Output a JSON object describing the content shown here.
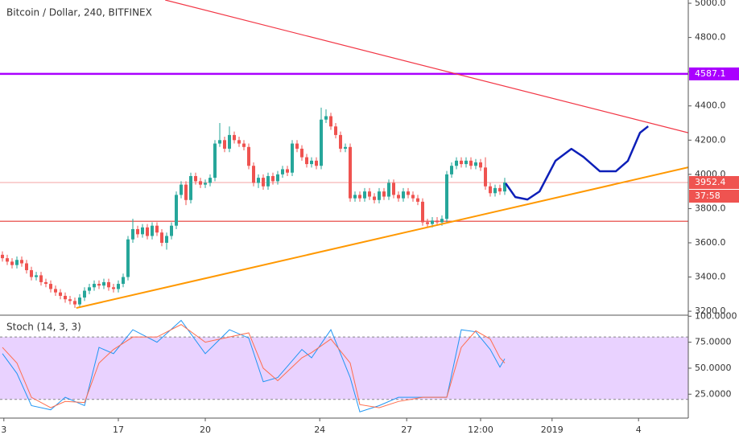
{
  "chart_data": {
    "type": "candlestick",
    "title": "Bitcoin / Dollar, 240, BITFINEX",
    "xlim": [
      -0.5,
      142
    ],
    "ylim": [
      3177,
      5019
    ],
    "xticks": [
      {
        "value": 0.3,
        "label": "3"
      },
      {
        "value": 24,
        "label": "17"
      },
      {
        "value": 42,
        "label": "20"
      },
      {
        "value": 65.7,
        "label": "24"
      },
      {
        "value": 83.7,
        "label": "27"
      },
      {
        "value": 99,
        "label": "12:00"
      },
      {
        "value": 113.8,
        "label": "2019"
      },
      {
        "value": 131.7,
        "label": "4"
      }
    ],
    "yticks": [
      {
        "value": 3200,
        "label": "3200.0"
      },
      {
        "value": 3400,
        "label": "3400.0"
      },
      {
        "value": 3600,
        "label": "3600.0"
      },
      {
        "value": 3800,
        "label": "3800.0"
      },
      {
        "value": 4000,
        "label": "4000.0"
      },
      {
        "value": 4200,
        "label": "4200.0"
      },
      {
        "value": 4400,
        "label": "4400.0"
      },
      {
        "value": 4600,
        "label": "4600.0"
      },
      {
        "value": 4800,
        "label": "4800.0"
      },
      {
        "value": 5000,
        "label": "5000.0"
      }
    ],
    "up_color": "#26a69a",
    "down_color": "#ef5350",
    "candles": {
      "open": [
        3530,
        3510,
        3490,
        3470,
        3500,
        3480,
        3440,
        3400,
        3410,
        3370,
        3360,
        3330,
        3310,
        3290,
        3270,
        3260,
        3240,
        3280,
        3320,
        3340,
        3360,
        3350,
        3370,
        3340,
        3330,
        3360,
        3400,
        3620,
        3680,
        3650,
        3690,
        3640,
        3700,
        3660,
        3600,
        3640,
        3700,
        3880,
        3940,
        3850,
        3990,
        3960,
        3940,
        3950,
        3980,
        4180,
        4200,
        4150,
        4230,
        4200,
        4180,
        4160,
        4050,
        3950,
        3980,
        3930,
        3990,
        3960,
        4000,
        4030,
        4010,
        4180,
        4150,
        4100,
        4060,
        4080,
        4050,
        4320,
        4340,
        4280,
        4230,
        4150,
        4160,
        3860,
        3880,
        3860,
        3900,
        3870,
        3850,
        3900,
        3870,
        3950,
        3880,
        3860,
        3900,
        3880,
        3860,
        3840,
        3720,
        3710,
        3730,
        3720,
        3740,
        4000,
        4050,
        4080,
        4060,
        4080,
        4050,
        4070,
        4040,
        3930,
        3890,
        3920,
        3900
      ],
      "high": [
        3550,
        3530,
        3510,
        3520,
        3520,
        3500,
        3460,
        3430,
        3430,
        3390,
        3380,
        3350,
        3330,
        3310,
        3290,
        3280,
        3300,
        3340,
        3360,
        3380,
        3380,
        3390,
        3390,
        3360,
        3380,
        3420,
        3640,
        3740,
        3700,
        3710,
        3710,
        3720,
        3720,
        3680,
        3660,
        3720,
        3900,
        3960,
        3960,
        4010,
        4010,
        3980,
        3970,
        4000,
        4200,
        4300,
        4220,
        4280,
        4250,
        4220,
        4200,
        4180,
        4070,
        4000,
        4000,
        4010,
        4010,
        4020,
        4050,
        4050,
        4200,
        4200,
        4170,
        4120,
        4100,
        4100,
        4390,
        4380,
        4360,
        4300,
        4250,
        4180,
        4180,
        3900,
        3900,
        3920,
        3920,
        3890,
        3920,
        3920,
        3970,
        3970,
        3900,
        3920,
        3920,
        3900,
        3880,
        3860,
        3740,
        3750,
        3750,
        3760,
        4020,
        4070,
        4100,
        4100,
        4100,
        4100,
        4090,
        4090,
        4100,
        3950,
        3940,
        3940,
        3980
      ],
      "low": [
        3490,
        3470,
        3450,
        3450,
        3460,
        3420,
        3380,
        3380,
        3350,
        3340,
        3310,
        3290,
        3270,
        3250,
        3240,
        3220,
        3220,
        3260,
        3300,
        3320,
        3330,
        3330,
        3320,
        3310,
        3310,
        3340,
        3380,
        3600,
        3630,
        3630,
        3620,
        3620,
        3640,
        3580,
        3560,
        3620,
        3680,
        3860,
        3820,
        3830,
        3940,
        3920,
        3920,
        3930,
        3960,
        4160,
        4130,
        4130,
        4180,
        4160,
        4140,
        4030,
        3930,
        3920,
        3910,
        3910,
        3940,
        3940,
        3980,
        3990,
        3990,
        4130,
        4080,
        4040,
        4040,
        4030,
        4030,
        4300,
        4260,
        4210,
        4130,
        4130,
        3840,
        3840,
        3840,
        3840,
        3850,
        3830,
        3830,
        3850,
        3850,
        3860,
        3840,
        3840,
        3860,
        3840,
        3820,
        3700,
        3690,
        3690,
        3700,
        3700,
        3720,
        3980,
        4030,
        4040,
        4040,
        4030,
        4030,
        4020,
        3910,
        3870,
        3870,
        3880,
        3880
      ],
      "close": [
        3510,
        3490,
        3470,
        3500,
        3480,
        3440,
        3400,
        3410,
        3370,
        3360,
        3330,
        3310,
        3290,
        3270,
        3260,
        3240,
        3280,
        3320,
        3340,
        3360,
        3350,
        3370,
        3340,
        3330,
        3360,
        3400,
        3620,
        3680,
        3650,
        3690,
        3640,
        3700,
        3660,
        3600,
        3640,
        3700,
        3880,
        3940,
        3850,
        3990,
        3960,
        3940,
        3950,
        3980,
        4180,
        4200,
        4150,
        4230,
        4200,
        4180,
        4160,
        4050,
        3950,
        3980,
        3930,
        3990,
        3960,
        4000,
        4030,
        4010,
        4180,
        4150,
        4100,
        4060,
        4080,
        4050,
        4320,
        4340,
        4280,
        4230,
        4150,
        4160,
        3860,
        3880,
        3860,
        3900,
        3870,
        3850,
        3900,
        3870,
        3950,
        3880,
        3860,
        3900,
        3880,
        3860,
        3840,
        3720,
        3710,
        3730,
        3720,
        3740,
        4000,
        4050,
        4080,
        4060,
        4080,
        4050,
        4070,
        4040,
        3930,
        3890,
        3920,
        3900,
        3952.4
      ]
    },
    "countdown": "37:58",
    "hlines": [
      {
        "value": 3726,
        "color": "#e53935"
      },
      {
        "value": 4587.1,
        "color": "#aa00ff"
      }
    ],
    "trendlines": [
      {
        "color": "#f23645",
        "x": [
          33.7,
          142
        ],
        "y": [
          5019,
          4243
        ]
      },
      {
        "color": "#ff9800",
        "x": [
          15.3,
          142
        ],
        "y": [
          3219,
          4041
        ]
      },
      {
        "color": "#0d1fb8",
        "x": [
          104.2,
          106.2,
          108.7,
          111.2,
          114.5,
          117.8,
          120.3,
          123.7,
          127,
          129.5,
          132,
          133.7
        ],
        "y": [
          3947,
          3867,
          3853,
          3900,
          4079,
          4149,
          4102,
          4018,
          4018,
          4079,
          4243,
          4281
        ]
      }
    ],
    "stoch": {
      "title": "Stoch (14, 3, 3)",
      "ylim": [
        2,
        101
      ],
      "band": [
        20,
        80
      ],
      "yticks": [
        {
          "value": 25,
          "label": "25.0000"
        },
        {
          "value": 50,
          "label": "50.0000"
        },
        {
          "value": 75,
          "label": "75.0000"
        },
        {
          "value": 100,
          "label": "100.0000"
        }
      ],
      "x": [
        0,
        3,
        6,
        10,
        13,
        17,
        20,
        23,
        27,
        32,
        37,
        42,
        47,
        51,
        54,
        57,
        62,
        64,
        68,
        72,
        74,
        78,
        82,
        87,
        92,
        95,
        98,
        101,
        103,
        104
      ],
      "series": [
        {
          "color": "#2196f3",
          "values": [
            64,
            45,
            14,
            10,
            22,
            14,
            70,
            64,
            87,
            75,
            96,
            64,
            87,
            79,
            37,
            41,
            68,
            60,
            87,
            41,
            8,
            14,
            22,
            22,
            22,
            87,
            85,
            68,
            51,
            59
          ]
        },
        {
          "color": "#ff6d4d",
          "values": [
            70,
            55,
            22,
            12,
            18,
            17,
            55,
            68,
            80,
            80,
            92,
            75,
            80,
            84,
            50,
            38,
            60,
            65,
            78,
            55,
            15,
            12,
            18,
            22,
            22,
            70,
            86,
            78,
            60,
            55
          ]
        }
      ]
    }
  }
}
